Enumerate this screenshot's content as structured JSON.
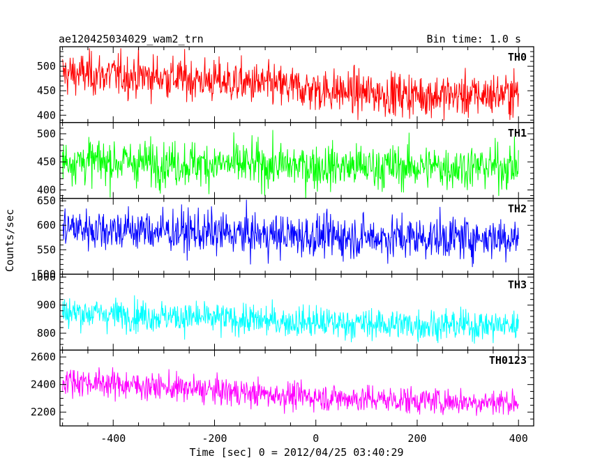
{
  "header": {
    "title": "ae120425034029_wam2_trn",
    "bin_time": "Bin time: 1.0 s"
  },
  "chart_data": {
    "type": "line",
    "title": "ae120425034029_wam2_trn",
    "xlabel": "Time [sec] 0 = 2012/04/25 03:40:29",
    "ylabel": "Counts/sec",
    "xlim": [
      -505,
      430
    ],
    "x_ticks": [
      -400,
      -200,
      0,
      200,
      400
    ],
    "x_sample": [
      -500,
      400
    ],
    "bin_time_s": 1.0,
    "panels": [
      {
        "name": "TH0",
        "color": "#ff0000",
        "ylim": [
          385,
          540
        ],
        "y_ticks": [
          400,
          450,
          500
        ],
        "trend": [
          [
            -500,
            485
          ],
          [
            -400,
            482
          ],
          [
            -300,
            478
          ],
          [
            -200,
            470
          ],
          [
            -100,
            462
          ],
          [
            0,
            452
          ],
          [
            100,
            445
          ],
          [
            200,
            442
          ],
          [
            300,
            440
          ],
          [
            400,
            445
          ]
        ],
        "noise": 22
      },
      {
        "name": "TH1",
        "color": "#00ff00",
        "ylim": [
          385,
          520
        ],
        "y_ticks": [
          400,
          450,
          500
        ],
        "trend": [
          [
            -500,
            452
          ],
          [
            -400,
            450
          ],
          [
            -300,
            448
          ],
          [
            -200,
            446
          ],
          [
            -100,
            444
          ],
          [
            0,
            442
          ],
          [
            100,
            441
          ],
          [
            200,
            441
          ],
          [
            300,
            441
          ],
          [
            400,
            442
          ]
        ],
        "noise": 20
      },
      {
        "name": "TH2",
        "color": "#0000ff",
        "ylim": [
          500,
          655
        ],
        "y_ticks": [
          500,
          550,
          600,
          650
        ],
        "trend": [
          [
            -500,
            595
          ],
          [
            -400,
            592
          ],
          [
            -300,
            588
          ],
          [
            -200,
            584
          ],
          [
            -100,
            580
          ],
          [
            0,
            578
          ],
          [
            100,
            576
          ],
          [
            200,
            575
          ],
          [
            300,
            575
          ],
          [
            400,
            576
          ]
        ],
        "noise": 22
      },
      {
        "name": "TH3",
        "color": "#00ffff",
        "ylim": [
          740,
          1010
        ],
        "y_ticks": [
          800,
          900,
          1000
        ],
        "trend": [
          [
            -500,
            875
          ],
          [
            -400,
            868
          ],
          [
            -300,
            860
          ],
          [
            -200,
            852
          ],
          [
            -100,
            844
          ],
          [
            0,
            838
          ],
          [
            100,
            833
          ],
          [
            200,
            830
          ],
          [
            300,
            828
          ],
          [
            400,
            828
          ]
        ],
        "noise": 28
      },
      {
        "name": "TH0123",
        "color": "#ff00ff",
        "ylim": [
          2100,
          2650
        ],
        "y_ticks": [
          2200,
          2400,
          2600
        ],
        "trend": [
          [
            -500,
            2430
          ],
          [
            -400,
            2405
          ],
          [
            -300,
            2380
          ],
          [
            -200,
            2355
          ],
          [
            -100,
            2330
          ],
          [
            0,
            2310
          ],
          [
            100,
            2295
          ],
          [
            200,
            2285
          ],
          [
            300,
            2275
          ],
          [
            400,
            2275
          ]
        ],
        "noise": 50
      }
    ]
  }
}
